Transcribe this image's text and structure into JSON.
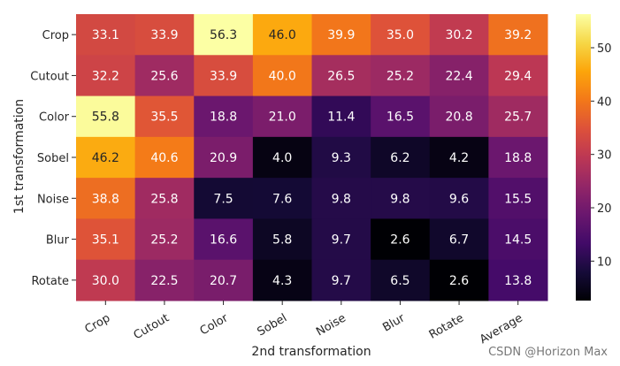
{
  "chart_data": {
    "type": "heatmap",
    "title": "",
    "xlabel": "2nd transformation",
    "ylabel": "1st transformation",
    "x_categories": [
      "Crop",
      "Cutout",
      "Color",
      "Sobel",
      "Noise",
      "Blur",
      "Rotate",
      "Average"
    ],
    "y_categories": [
      "Crop",
      "Cutout",
      "Color",
      "Sobel",
      "Noise",
      "Blur",
      "Rotate"
    ],
    "values": [
      [
        33.1,
        33.9,
        56.3,
        46.0,
        39.9,
        35.0,
        30.2,
        39.2
      ],
      [
        32.2,
        25.6,
        33.9,
        40.0,
        26.5,
        25.2,
        22.4,
        29.4
      ],
      [
        55.8,
        35.5,
        18.8,
        21.0,
        11.4,
        16.5,
        20.8,
        25.7
      ],
      [
        46.2,
        40.6,
        20.9,
        4.0,
        9.3,
        6.2,
        4.2,
        18.8
      ],
      [
        38.8,
        25.8,
        7.5,
        7.6,
        9.8,
        9.8,
        9.6,
        15.5
      ],
      [
        35.1,
        25.2,
        16.6,
        5.8,
        9.7,
        2.6,
        6.7,
        14.5
      ],
      [
        30.0,
        22.5,
        20.7,
        4.3,
        9.7,
        6.5,
        2.6,
        13.8
      ]
    ],
    "colormap": "inferno",
    "colorbar": {
      "range": [
        2.6,
        56.3
      ],
      "ticks": [
        10,
        20,
        30,
        40,
        50
      ]
    }
  },
  "watermark": "CSDN @Horizon Max"
}
